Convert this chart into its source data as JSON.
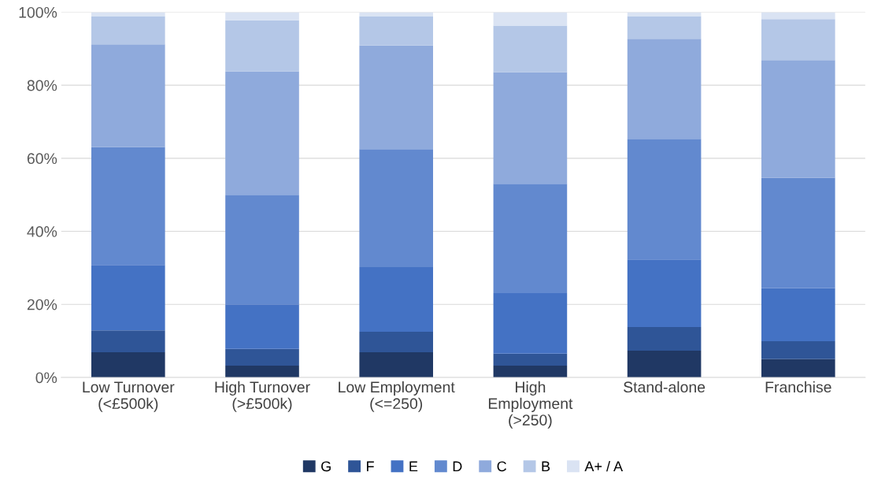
{
  "chart_data": {
    "type": "bar",
    "stacked": true,
    "categories": [
      "Low Turnover\n(<£500k)",
      "High Turnover\n(>£500k)",
      "Low Employment\n(<=250)",
      "High\nEmployment\n(>250)",
      "Stand-alone",
      "Franchise"
    ],
    "series": [
      {
        "name": "G",
        "color": "#203864",
        "values": [
          6.9,
          3.2,
          6.9,
          3.2,
          7.3,
          5.0
        ]
      },
      {
        "name": "F",
        "color": "#2f5597",
        "values": [
          6.0,
          4.6,
          5.6,
          3.3,
          6.5,
          4.9
        ]
      },
      {
        "name": "E",
        "color": "#4472c4",
        "values": [
          17.9,
          12.2,
          17.7,
          16.6,
          18.5,
          14.5
        ]
      },
      {
        "name": "D",
        "color": "#6289cf",
        "values": [
          32.3,
          30.0,
          32.3,
          29.9,
          33.0,
          30.3
        ]
      },
      {
        "name": "C",
        "color": "#8faadc",
        "values": [
          28.1,
          33.8,
          28.4,
          30.6,
          27.4,
          32.2
        ]
      },
      {
        "name": "B",
        "color": "#b4c7e7",
        "values": [
          7.7,
          14.0,
          8.0,
          12.7,
          6.2,
          11.2
        ]
      },
      {
        "name": "A+ / A",
        "color": "#dae3f3",
        "values": [
          1.1,
          2.2,
          1.1,
          3.7,
          1.1,
          1.9
        ]
      }
    ],
    "ylim": [
      0,
      100
    ],
    "yticks": [
      {
        "value": 0,
        "label": "0%"
      },
      {
        "value": 20,
        "label": "20%"
      },
      {
        "value": 40,
        "label": "40%"
      },
      {
        "value": 60,
        "label": "60%"
      },
      {
        "value": 80,
        "label": "80%"
      },
      {
        "value": 100,
        "label": "100%"
      }
    ],
    "grid": "y",
    "legend": "bottom"
  }
}
